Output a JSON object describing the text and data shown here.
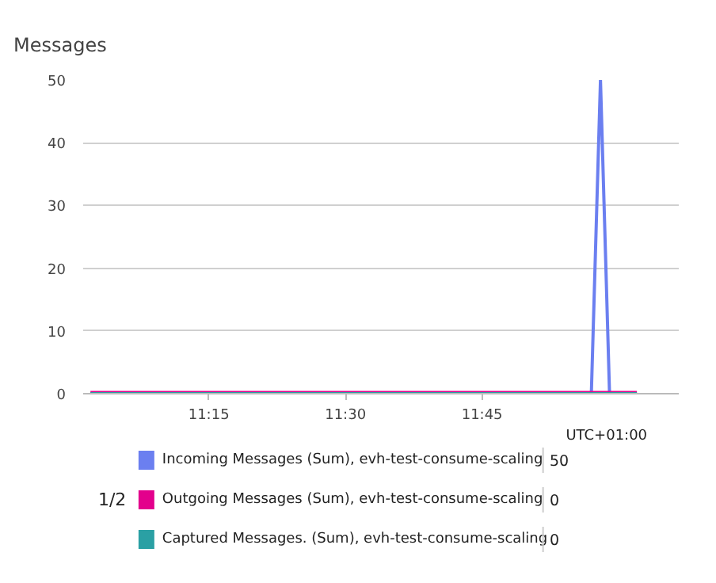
{
  "chart_data": {
    "type": "line",
    "title": "Messages",
    "xlim": [
      11.02,
      12.11
    ],
    "ylim": [
      0,
      50
    ],
    "xticks": [
      {
        "value": 11.25,
        "label": "11:15"
      },
      {
        "value": 11.5,
        "label": "11:30"
      },
      {
        "value": 11.75,
        "label": "11:45"
      }
    ],
    "yticks": [
      0,
      10,
      20,
      30,
      40,
      50
    ],
    "grid": "y",
    "legend": "bottom",
    "marker": "none",
    "line_style": "solid",
    "series": [
      {
        "name": "Incoming Messages (Sum), evh-test-consume-scaling",
        "color": "#6b7ff0",
        "x": [
          11.0333,
          11.95,
          11.9667,
          11.9833,
          12.0333
        ],
        "values": [
          0,
          0,
          50,
          0,
          0
        ]
      },
      {
        "name": "Outgoing Messages (Sum), evh-test-consume-scaling",
        "color": "#e3008c",
        "x": [
          11.0333,
          12.0333
        ],
        "values": [
          0,
          0
        ]
      },
      {
        "name": "Captured Messages. (Sum), evh-test-consume-scaling",
        "color": "#2aa0a4",
        "x": [
          11.0333,
          12.0333
        ],
        "values": [
          0,
          0
        ]
      }
    ],
    "annotations": [
      "UTC+01:00",
      "1/2",
      "50",
      "0",
      "0"
    ]
  }
}
